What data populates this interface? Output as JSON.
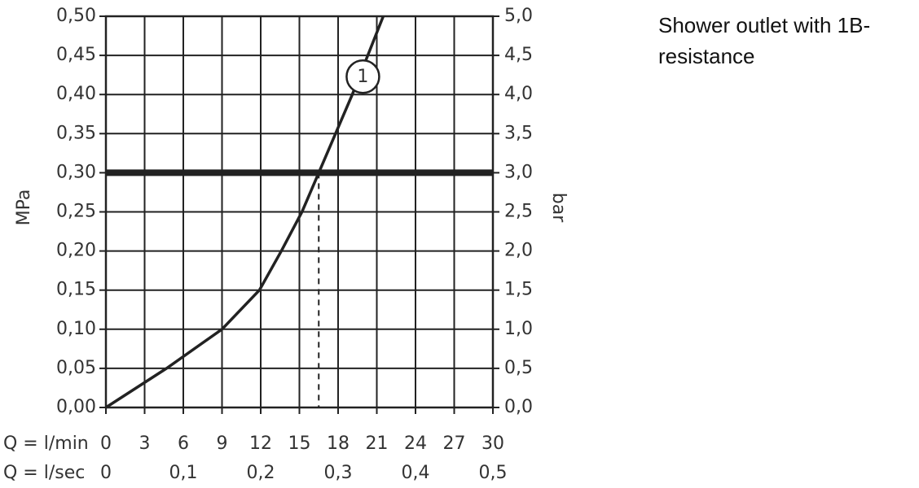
{
  "chart_data": {
    "type": "line",
    "side_text": "Shower outlet with 1B-resistance",
    "ylabel": "MPa",
    "y2label": "bar",
    "xlabel": "Q = l/min",
    "x2label": "Q = l/sec",
    "xlim": [
      0,
      30
    ],
    "xticks": [
      0,
      3,
      6,
      9,
      12,
      15,
      18,
      21,
      24,
      27,
      30
    ],
    "x2lim": [
      0,
      0.5
    ],
    "x2ticks": [
      0,
      {
        "value": 0.1,
        "label": "0,1"
      },
      {
        "value": 0.2,
        "label": "0,2"
      },
      {
        "value": 0.3,
        "label": "0,3"
      },
      {
        "value": 0.4,
        "label": "0,4"
      },
      {
        "value": 0.5,
        "label": "0,5"
      }
    ],
    "ylim": [
      0,
      0.5
    ],
    "yticks": [
      {
        "value": 0,
        "label": "0,00"
      },
      {
        "value": 0.05,
        "label": "0,05"
      },
      {
        "value": 0.1,
        "label": "0,10"
      },
      {
        "value": 0.15,
        "label": "0,15"
      },
      {
        "value": 0.2,
        "label": "0,20"
      },
      {
        "value": 0.25,
        "label": "0,25"
      },
      {
        "value": 0.3,
        "label": "0,30"
      },
      {
        "value": 0.35,
        "label": "0,35"
      },
      {
        "value": 0.4,
        "label": "0,40"
      },
      {
        "value": 0.45,
        "label": "0,45"
      },
      {
        "value": 0.5,
        "label": "0,50"
      }
    ],
    "y2lim": [
      0,
      5
    ],
    "y2ticks": [
      {
        "value": 0,
        "label": "0,0"
      },
      {
        "value": 0.5,
        "label": "0,5"
      },
      {
        "value": 1,
        "label": "1,0"
      },
      {
        "value": 1.5,
        "label": "1,5"
      },
      {
        "value": 2,
        "label": "2,0"
      },
      {
        "value": 2.5,
        "label": "2,5"
      },
      {
        "value": 3,
        "label": "3,0"
      },
      {
        "value": 3.5,
        "label": "3,5"
      },
      {
        "value": 4,
        "label": "4,0"
      },
      {
        "value": 4.5,
        "label": "4,5"
      },
      {
        "value": 5,
        "label": "5,0"
      }
    ],
    "grid": true,
    "ref_y": 0.3,
    "ref_x": 16.5,
    "series": [
      {
        "name": "1",
        "color": "#222222",
        "x": [
          0,
          4.7,
          9,
          11.9,
          13.6,
          15.2,
          16.5,
          17.8,
          19.1,
          20.3,
          21.5
        ],
        "values": [
          0,
          0.05,
          0.1,
          0.15,
          0.2,
          0.25,
          0.3,
          0.35,
          0.4,
          0.45,
          0.5
        ]
      }
    ]
  }
}
